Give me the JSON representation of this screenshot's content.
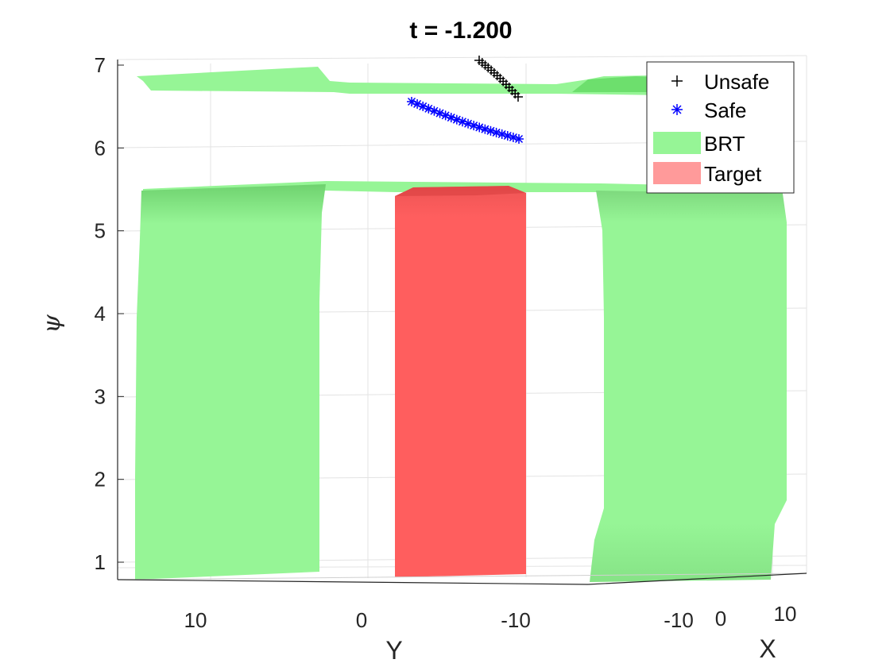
{
  "chart_data": {
    "type": "3d-surface",
    "title": "t = -1.200",
    "xlabel": "X",
    "ylabel": "Y",
    "zlabel": "ψ",
    "zlim": [
      0.8,
      7.1
    ],
    "z_ticks": [
      "1",
      "2",
      "3",
      "4",
      "5",
      "6",
      "7"
    ],
    "y_ticks": [
      "10",
      "0",
      "-10"
    ],
    "x_ticks": [
      "-10",
      "0",
      "10"
    ],
    "grid": true,
    "legend_position": "top-right",
    "legend": [
      {
        "label": "Unsafe",
        "marker": "+",
        "color": "#000000"
      },
      {
        "label": "Safe",
        "marker": "*",
        "color": "#0000ff"
      },
      {
        "label": "BRT",
        "marker": "patch",
        "color": "#96f596"
      },
      {
        "label": "Target",
        "marker": "patch",
        "color": "#ff9a9a"
      }
    ],
    "surfaces": {
      "BRT": {
        "color": "#96f596",
        "opacity": 1.0
      },
      "Target": {
        "color": "#ff5e5e",
        "opacity": 1.0
      }
    },
    "series": [
      {
        "name": "Unsafe",
        "marker": "+",
        "color": "#000000",
        "count": 14,
        "psi_range": [
          6.6,
          7.05
        ]
      },
      {
        "name": "Safe",
        "marker": "*",
        "color": "#0000ff",
        "count": 20,
        "psi_range": [
          6.1,
          6.55
        ]
      }
    ]
  }
}
